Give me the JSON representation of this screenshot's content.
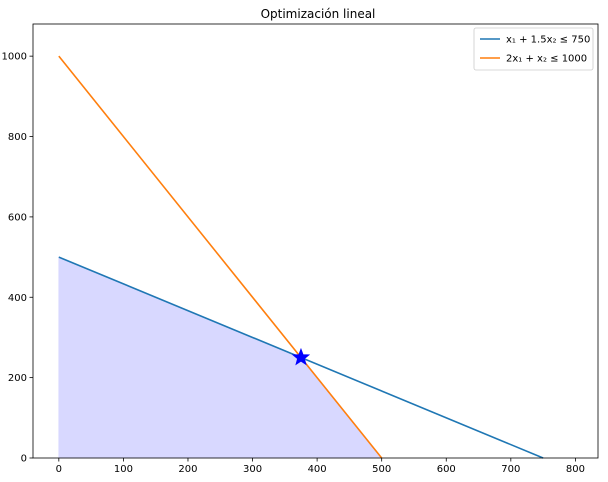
{
  "chart_data": {
    "type": "line",
    "title": "Optimización lineal",
    "xlabel": "",
    "ylabel": "",
    "xlim": [
      -40,
      835
    ],
    "ylim": [
      0,
      1080
    ],
    "x_ticks": [
      0,
      100,
      200,
      300,
      400,
      500,
      600,
      700,
      800
    ],
    "y_ticks": [
      0,
      200,
      400,
      600,
      800,
      1000
    ],
    "grid": false,
    "legend_position": "top-right",
    "series": [
      {
        "name": "x₁ + 1.5x₂ ≤ 750",
        "color": "#1f77b4",
        "x": [
          0,
          750
        ],
        "y": [
          500,
          0
        ]
      },
      {
        "name": "2x₁ + x₂ ≤ 1000",
        "color": "#ff7f0e",
        "x": [
          0,
          500
        ],
        "y": [
          1000,
          0
        ]
      }
    ],
    "feasible_region": {
      "color": "#d8d8ff",
      "points": [
        [
          0,
          0
        ],
        [
          0,
          500
        ],
        [
          375,
          250
        ],
        [
          500,
          0
        ]
      ]
    },
    "optimum": {
      "x": 375,
      "y": 250,
      "marker": "star",
      "color": "#0000ff"
    }
  }
}
